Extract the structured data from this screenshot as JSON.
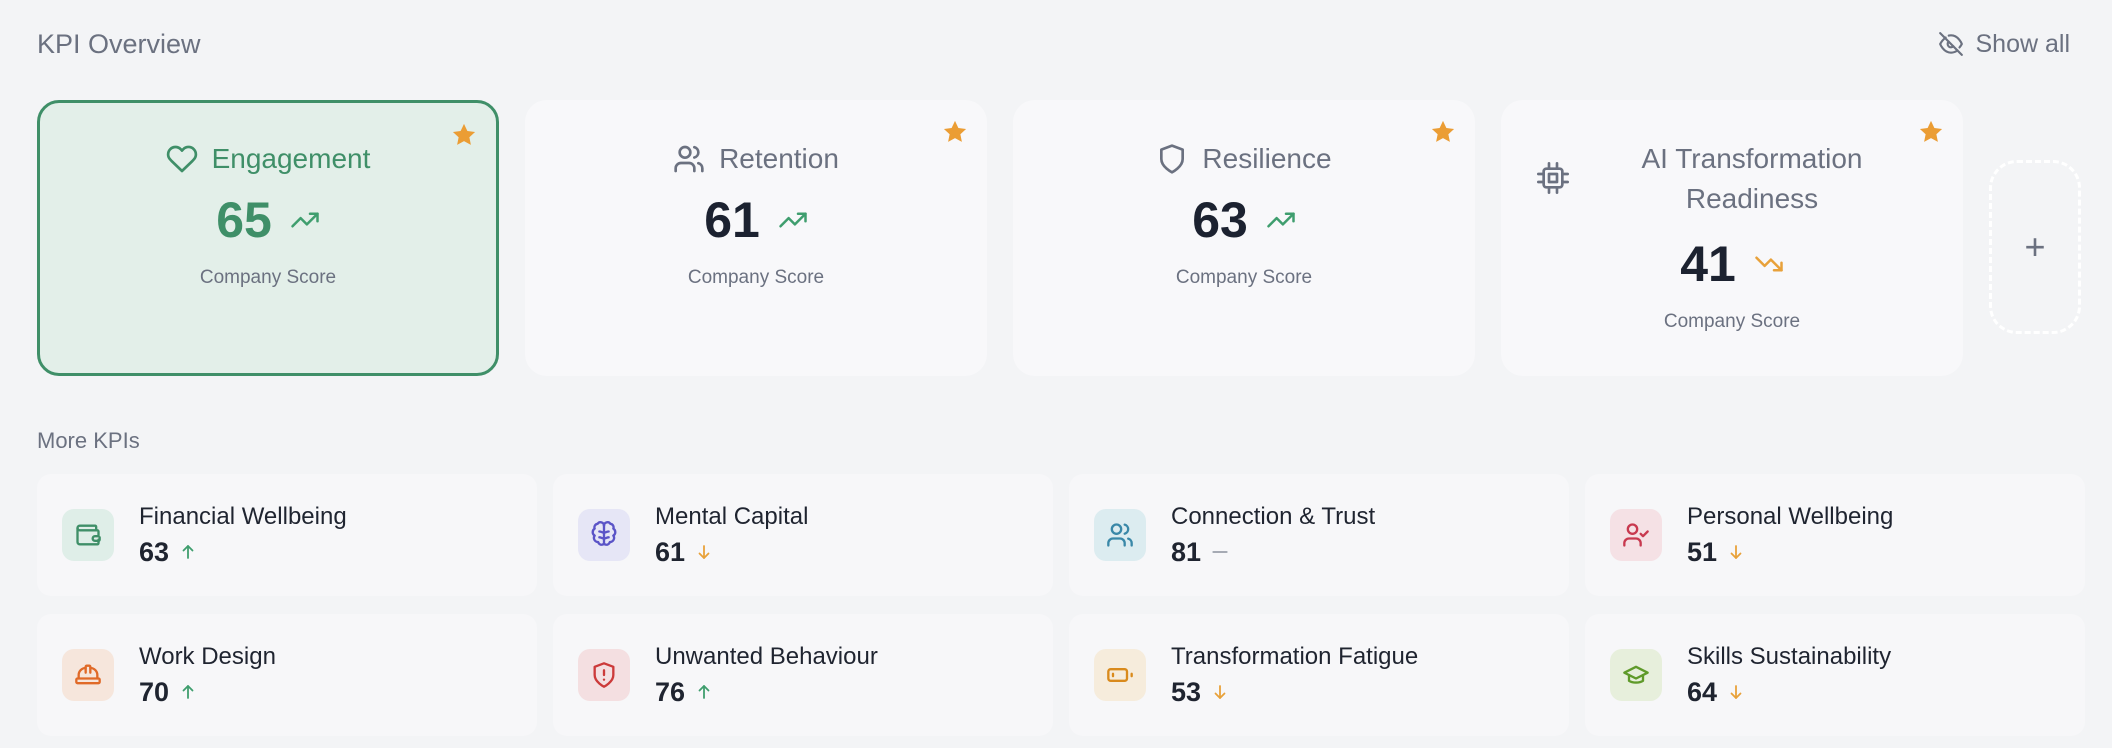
{
  "header": {
    "title": "KPI Overview",
    "show_all_label": "Show all"
  },
  "top_kpis": [
    {
      "name": "Engagement",
      "value": "65",
      "subtitle": "Company Score",
      "trend": "up",
      "icon": "heart-icon",
      "starred": true,
      "active": true
    },
    {
      "name": "Retention",
      "value": "61",
      "subtitle": "Company Score",
      "trend": "up",
      "icon": "users-icon",
      "starred": true
    },
    {
      "name": "Resilience",
      "value": "63",
      "subtitle": "Company Score",
      "trend": "up",
      "icon": "shield-icon",
      "starred": true
    },
    {
      "name": "AI Transformation Readiness",
      "value": "41",
      "subtitle": "Company Score",
      "trend": "down",
      "icon": "chip-icon",
      "starred": true
    }
  ],
  "add_card_label": "+",
  "more_kpis_label": "More KPIs",
  "more_kpis": [
    {
      "name": "Financial Wellbeing",
      "value": "63",
      "trend": "up",
      "icon": "wallet-icon"
    },
    {
      "name": "Mental Capital",
      "value": "61",
      "trend": "down",
      "icon": "brain-icon"
    },
    {
      "name": "Connection & Trust",
      "value": "81",
      "trend": "flat",
      "icon": "users-icon"
    },
    {
      "name": "Personal Wellbeing",
      "value": "51",
      "trend": "down",
      "icon": "user-check-icon"
    },
    {
      "name": "Work Design",
      "value": "70",
      "trend": "up",
      "icon": "hard-hat-icon"
    },
    {
      "name": "Unwanted Behaviour",
      "value": "76",
      "trend": "up",
      "icon": "shield-alert-icon"
    },
    {
      "name": "Transformation Fatigue",
      "value": "53",
      "trend": "down",
      "icon": "battery-low-icon"
    },
    {
      "name": "Skills Sustainability",
      "value": "64",
      "trend": "down",
      "icon": "graduation-cap-icon"
    }
  ],
  "colors": {
    "accent_green": "#3f8f68",
    "trend_up": "#3f9e6e",
    "trend_down": "#e8a13a",
    "star": "#eb9d34"
  }
}
